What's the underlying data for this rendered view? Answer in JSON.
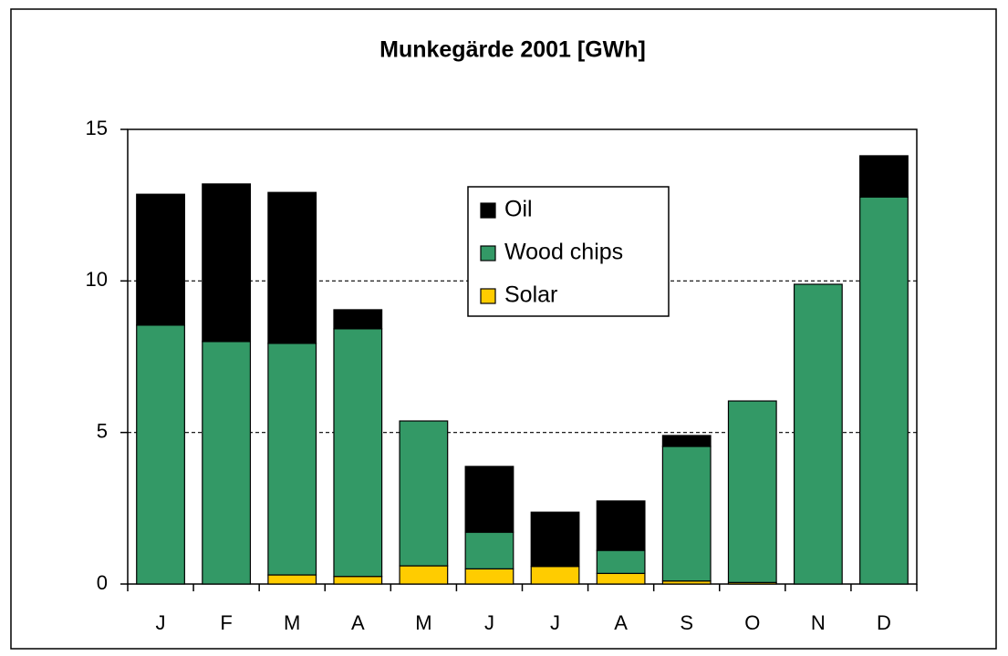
{
  "chart_data": {
    "type": "stacked-bar",
    "title": "Munkegärde 2001 [GWh]",
    "categories": [
      "J",
      "F",
      "M",
      "A",
      "M",
      "J",
      "J",
      "A",
      "S",
      "O",
      "N",
      "D"
    ],
    "series": [
      {
        "name": "Oil",
        "color": "#000000",
        "values": [
          4.32,
          5.2,
          4.98,
          0.63,
          0,
          2.17,
          1.79,
          1.63,
          0.36,
          0,
          0,
          1.36
        ]
      },
      {
        "name": "Wood chips",
        "color": "#339966",
        "values": [
          8.54,
          8.0,
          7.64,
          8.17,
          4.78,
          1.21,
          0,
          0.76,
          4.44,
          5.99,
          9.89,
          12.77
        ]
      },
      {
        "name": "Solar",
        "color": "#ffcc00",
        "values": [
          0,
          0,
          0.3,
          0.25,
          0.6,
          0.5,
          0.58,
          0.35,
          0.1,
          0.05,
          0,
          0
        ]
      }
    ],
    "ylim": [
      0,
      15
    ],
    "yticks": [
      0,
      5,
      10,
      15
    ],
    "grid": true
  }
}
